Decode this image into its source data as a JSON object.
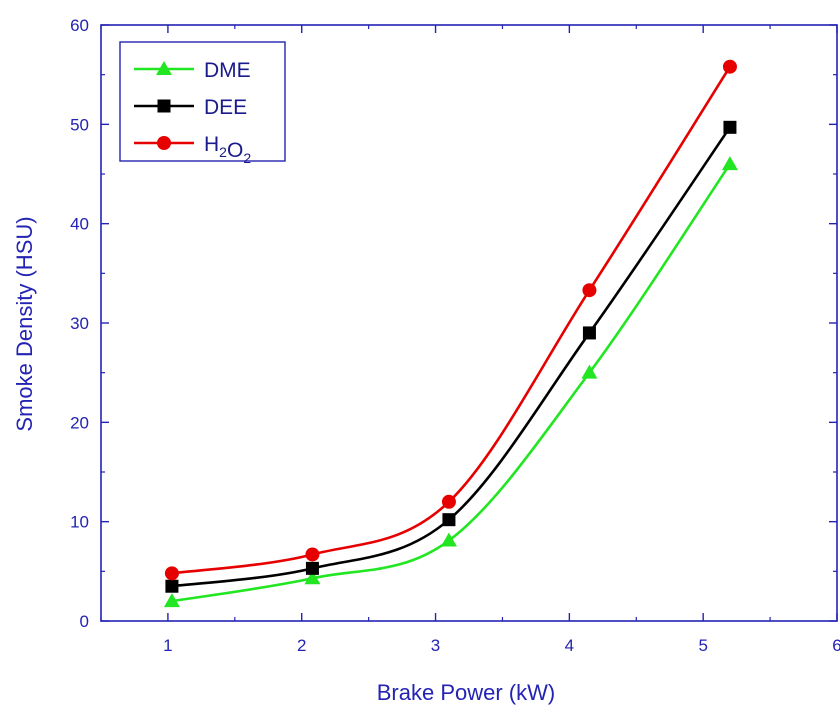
{
  "chart_data": {
    "type": "line",
    "xlabel": "Brake Power (kW)",
    "ylabel": "Smoke Density (HSU)",
    "xlim": [
      0.5,
      6
    ],
    "ylim": [
      0,
      60
    ],
    "x_ticks": [
      1,
      2,
      3,
      4,
      5,
      6
    ],
    "y_ticks": [
      0,
      10,
      20,
      30,
      40,
      50,
      60
    ],
    "grid": false,
    "legend_position": "top-left",
    "axis_color": "#2323b4",
    "series": [
      {
        "name": "DME",
        "marker": "triangle",
        "color": "#22e622",
        "points": [
          [
            1.03,
            2.0
          ],
          [
            2.08,
            4.3
          ],
          [
            3.1,
            8.1
          ],
          [
            4.15,
            25.0
          ],
          [
            5.2,
            46.0
          ]
        ]
      },
      {
        "name": "DEE",
        "marker": "square",
        "color": "#000000",
        "points": [
          [
            1.03,
            3.5
          ],
          [
            2.08,
            5.3
          ],
          [
            3.1,
            10.2
          ],
          [
            4.15,
            29.0
          ],
          [
            5.2,
            49.7
          ]
        ]
      },
      {
        "name": "H2O2",
        "marker": "circle",
        "color": "#e60000",
        "points": [
          [
            1.03,
            4.8
          ],
          [
            2.08,
            6.7
          ],
          [
            3.1,
            12.0
          ],
          [
            4.15,
            33.3
          ],
          [
            5.2,
            55.8
          ]
        ]
      }
    ]
  }
}
